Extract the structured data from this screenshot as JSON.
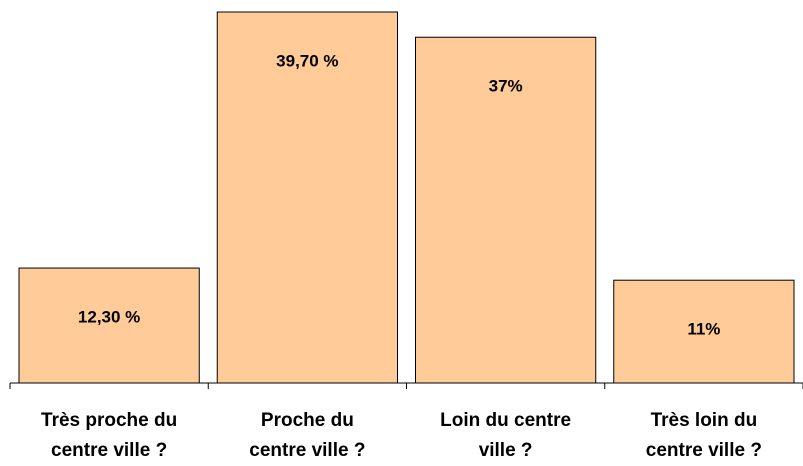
{
  "chart_data": {
    "type": "bar",
    "categories": [
      "Très proche du\ncentre ville ?",
      "Proche du\ncentre ville ?",
      "Loin du centre\nville ?",
      "Très loin du\ncentre ville ?"
    ],
    "values": [
      12.3,
      39.7,
      37,
      11
    ],
    "value_labels": [
      "12,30 %",
      "39,70 %",
      "37%",
      "11%"
    ],
    "color": "#ffcc99"
  }
}
